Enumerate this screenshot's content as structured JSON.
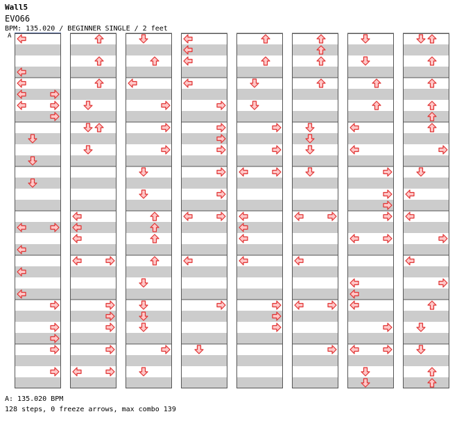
{
  "header": {
    "title": "Wall5",
    "artist": "EVO66",
    "info": "BPM: 135.020 / BEGINNER SINGLE / 2 feet"
  },
  "marker": "A",
  "footer": {
    "bpm": "A: 135.020 BPM",
    "stats": "128 steps, 0 freeze arrows, max combo 139"
  },
  "colors": {
    "stripe": "#cccccc",
    "arrow_fill": "#ffc8c8",
    "arrow_stroke": "#e03030",
    "border": "#555555"
  },
  "chart_data": {
    "type": "table",
    "columns": 8,
    "measures_per_column": 8,
    "rows_per_measure": 4,
    "lanes": [
      "left",
      "down",
      "up",
      "right"
    ],
    "notes": [
      [
        [
          0,
          0,
          0,
          0
        ],
        [
          0,
          3,
          0,
          0
        ],
        [
          0,
          5,
          0,
          0
        ],
        [
          0,
          6,
          0,
          3
        ],
        [
          1,
          0,
          0,
          0
        ],
        [
          1,
          1,
          0,
          3
        ],
        [
          1,
          2,
          0,
          0
        ],
        [
          1,
          3,
          0,
          3
        ],
        [
          2,
          1,
          0,
          1
        ],
        [
          2,
          3,
          0,
          1
        ],
        [
          3,
          1,
          0,
          1
        ],
        [
          4,
          1,
          0,
          0
        ],
        [
          4,
          1,
          0,
          3
        ],
        [
          4,
          3,
          0,
          0
        ],
        [
          5,
          1,
          0,
          0
        ],
        [
          5,
          3,
          0,
          0
        ],
        [
          6,
          0,
          0,
          3
        ],
        [
          6,
          2,
          0,
          3
        ],
        [
          6,
          3,
          0,
          3
        ],
        [
          7,
          0,
          0,
          3
        ],
        [
          7,
          2,
          0,
          3
        ]
      ],
      [
        [
          0,
          0,
          0,
          2
        ],
        [
          0,
          2,
          0,
          2
        ],
        [
          1,
          0,
          0,
          2
        ],
        [
          1,
          2,
          0,
          1
        ],
        [
          2,
          0,
          0,
          1
        ],
        [
          2,
          0,
          0,
          2
        ],
        [
          2,
          2,
          0,
          1
        ],
        [
          4,
          0,
          0,
          0
        ],
        [
          4,
          1,
          0,
          0
        ],
        [
          4,
          2,
          0,
          0
        ],
        [
          5,
          0,
          0,
          0
        ],
        [
          5,
          0,
          0,
          3
        ],
        [
          6,
          0,
          0,
          3
        ],
        [
          6,
          1,
          0,
          3
        ],
        [
          6,
          2,
          0,
          3
        ],
        [
          7,
          0,
          0,
          3
        ],
        [
          7,
          2,
          0,
          0
        ],
        [
          7,
          2,
          0,
          3
        ]
      ],
      [
        [
          0,
          0,
          0,
          1
        ],
        [
          0,
          2,
          0,
          2
        ],
        [
          1,
          0,
          0,
          0
        ],
        [
          1,
          2,
          0,
          3
        ],
        [
          2,
          0,
          0,
          3
        ],
        [
          2,
          2,
          0,
          3
        ],
        [
          3,
          0,
          0,
          1
        ],
        [
          3,
          2,
          0,
          1
        ],
        [
          4,
          0,
          0,
          2
        ],
        [
          4,
          1,
          0,
          2
        ],
        [
          4,
          2,
          0,
          2
        ],
        [
          5,
          0,
          0,
          2
        ],
        [
          5,
          2,
          0,
          1
        ],
        [
          6,
          0,
          0,
          1
        ],
        [
          6,
          1,
          0,
          1
        ],
        [
          6,
          2,
          0,
          1
        ],
        [
          7,
          0,
          0,
          3
        ],
        [
          7,
          2,
          0,
          1
        ]
      ],
      [
        [
          0,
          0,
          0,
          0
        ],
        [
          0,
          1,
          0,
          0
        ],
        [
          0,
          2,
          0,
          0
        ],
        [
          1,
          0,
          0,
          0
        ],
        [
          1,
          2,
          0,
          3
        ],
        [
          2,
          0,
          0,
          3
        ],
        [
          2,
          1,
          0,
          3
        ],
        [
          2,
          2,
          0,
          3
        ],
        [
          3,
          0,
          0,
          3
        ],
        [
          3,
          2,
          0,
          3
        ],
        [
          4,
          0,
          0,
          0
        ],
        [
          4,
          0,
          0,
          3
        ],
        [
          5,
          0,
          0,
          0
        ],
        [
          6,
          0,
          0,
          3
        ],
        [
          7,
          0,
          0,
          1
        ]
      ],
      [
        [
          0,
          0,
          0,
          2
        ],
        [
          0,
          2,
          0,
          2
        ],
        [
          1,
          0,
          0,
          1
        ],
        [
          1,
          2,
          0,
          1
        ],
        [
          2,
          0,
          0,
          3
        ],
        [
          2,
          2,
          0,
          3
        ],
        [
          3,
          0,
          0,
          0
        ],
        [
          3,
          0,
          0,
          3
        ],
        [
          4,
          0,
          0,
          0
        ],
        [
          4,
          1,
          0,
          0
        ],
        [
          4,
          2,
          0,
          0
        ],
        [
          5,
          0,
          0,
          0
        ],
        [
          6,
          0,
          0,
          3
        ],
        [
          6,
          1,
          0,
          3
        ],
        [
          6,
          2,
          0,
          3
        ]
      ],
      [
        [
          0,
          0,
          0,
          2
        ],
        [
          0,
          1,
          0,
          2
        ],
        [
          0,
          2,
          0,
          2
        ],
        [
          1,
          0,
          0,
          2
        ],
        [
          2,
          0,
          0,
          1
        ],
        [
          2,
          1,
          0,
          1
        ],
        [
          2,
          2,
          0,
          1
        ],
        [
          3,
          0,
          0,
          1
        ],
        [
          4,
          0,
          0,
          0
        ],
        [
          4,
          0,
          0,
          3
        ],
        [
          5,
          0,
          0,
          0
        ],
        [
          6,
          0,
          0,
          0
        ],
        [
          6,
          0,
          0,
          3
        ],
        [
          7,
          0,
          0,
          3
        ]
      ],
      [
        [
          0,
          0,
          0,
          1
        ],
        [
          0,
          2,
          0,
          1
        ],
        [
          1,
          0,
          0,
          2
        ],
        [
          1,
          2,
          0,
          2
        ],
        [
          2,
          0,
          0,
          0
        ],
        [
          2,
          2,
          0,
          0
        ],
        [
          3,
          0,
          0,
          3
        ],
        [
          3,
          2,
          0,
          3
        ],
        [
          3,
          3,
          0,
          3
        ],
        [
          4,
          0,
          0,
          3
        ],
        [
          4,
          2,
          0,
          0
        ],
        [
          4,
          2,
          0,
          3
        ],
        [
          5,
          2,
          0,
          0
        ],
        [
          5,
          3,
          0,
          0
        ],
        [
          6,
          0,
          0,
          0
        ],
        [
          6,
          2,
          0,
          3
        ],
        [
          7,
          0,
          0,
          0
        ],
        [
          7,
          0,
          0,
          3
        ],
        [
          7,
          2,
          0,
          1
        ],
        [
          7,
          3,
          0,
          1
        ]
      ],
      [
        [
          0,
          0,
          0,
          1
        ],
        [
          0,
          0,
          0,
          2
        ],
        [
          0,
          2,
          0,
          2
        ],
        [
          1,
          0,
          0,
          2
        ],
        [
          1,
          2,
          0,
          2
        ],
        [
          1,
          3,
          0,
          2
        ],
        [
          2,
          0,
          0,
          2
        ],
        [
          2,
          2,
          0,
          3
        ],
        [
          3,
          0,
          0,
          1
        ],
        [
          3,
          2,
          0,
          0
        ],
        [
          4,
          0,
          0,
          0
        ],
        [
          4,
          2,
          0,
          3
        ],
        [
          5,
          0,
          0,
          0
        ],
        [
          5,
          2,
          0,
          3
        ],
        [
          6,
          0,
          0,
          2
        ],
        [
          6,
          2,
          0,
          1
        ],
        [
          7,
          0,
          0,
          1
        ],
        [
          7,
          2,
          0,
          2
        ],
        [
          7,
          3,
          0,
          2
        ]
      ]
    ]
  }
}
